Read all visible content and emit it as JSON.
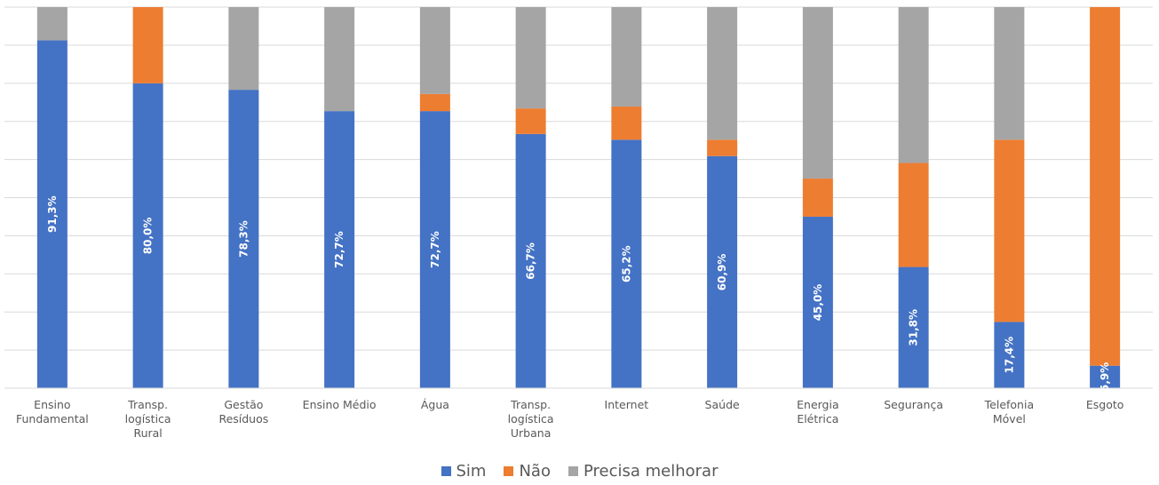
{
  "chart_data": {
    "type": "bar",
    "stacked": true,
    "percent_stacked": true,
    "ylim": [
      0,
      100
    ],
    "grid": true,
    "legend_position": "bottom",
    "data_labels_series": "Sim",
    "categories": [
      "Ensino Fundamental",
      "Transp. logística Rural",
      "Gestão Resíduos",
      "Ensino Médio",
      "Água",
      "Transp. logística Urbana",
      "Internet",
      "Saúde",
      "Energia Elétrica",
      "Segurança",
      "Telefonia Móvel",
      "Esgoto"
    ],
    "series": [
      {
        "name": "Sim",
        "color": "#4472C4",
        "values": [
          91.3,
          80.0,
          78.3,
          72.7,
          72.7,
          66.7,
          65.2,
          60.9,
          45.0,
          31.8,
          17.4,
          5.9
        ],
        "value_labels": [
          "91,3%",
          "80,0%",
          "78,3%",
          "72,7%",
          "72,7%",
          "66,7%",
          "65,2%",
          "60,9%",
          "45,0%",
          "31,8%",
          "17,4%",
          "5,9%"
        ]
      },
      {
        "name": "Não",
        "color": "#ED7D31",
        "values": [
          0,
          20.0,
          0,
          0,
          4.5,
          6.7,
          8.7,
          4.3,
          10.0,
          27.3,
          47.8,
          94.1
        ]
      },
      {
        "name": "Precisa melhorar",
        "color": "#A5A5A5",
        "values": [
          8.7,
          0,
          21.7,
          27.3,
          22.8,
          26.6,
          26.1,
          34.8,
          45.0,
          40.9,
          34.8,
          0
        ]
      }
    ]
  }
}
